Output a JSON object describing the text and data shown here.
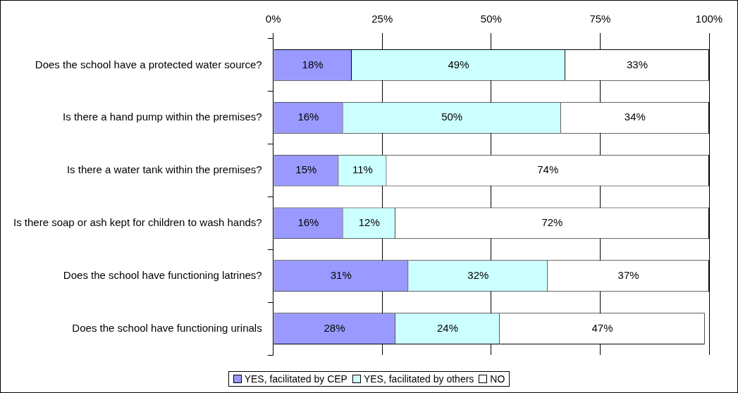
{
  "chart_data": {
    "type": "bar",
    "orientation": "horizontal",
    "stacked": true,
    "categories": [
      "Does the school have a protected water source?",
      "Is there a hand pump within the premises?",
      "Is there a water tank within the premises?",
      "Is there soap or ash kept for children to wash hands?",
      "Does the school have functioning latrines?",
      "Does the school have functioning urinals"
    ],
    "series": [
      {
        "name": "YES, facilitated by CEP",
        "color": "#9999ff",
        "values": [
          18,
          16,
          15,
          16,
          31,
          28
        ],
        "value_labels": [
          "18%",
          "16%",
          "15%",
          "16%",
          "31%",
          "28%"
        ]
      },
      {
        "name": "YES, facilitated by others",
        "color": "#ccffff",
        "values": [
          49,
          50,
          11,
          12,
          32,
          24
        ],
        "value_labels": [
          "49%",
          "50%",
          "11%",
          "12%",
          "32%",
          "24%"
        ]
      },
      {
        "name": "NO",
        "color": "#ffffff",
        "values": [
          33,
          34,
          74,
          72,
          37,
          47
        ],
        "value_labels": [
          "33%",
          "34%",
          "74%",
          "72%",
          "37%",
          "47%"
        ]
      }
    ],
    "xlim": [
      0,
      100
    ],
    "xticks": [
      {
        "value": 0,
        "label": "0%"
      },
      {
        "value": 25,
        "label": "25%"
      },
      {
        "value": 50,
        "label": "50%"
      },
      {
        "value": 75,
        "label": "75%"
      },
      {
        "value": 100,
        "label": "100%"
      }
    ],
    "grid": "x",
    "legend": "bottom"
  }
}
